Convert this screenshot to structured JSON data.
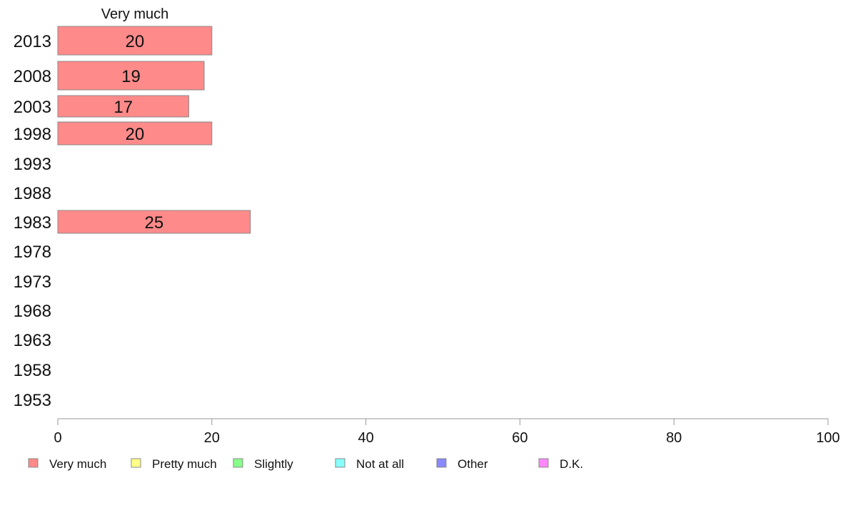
{
  "chart_data": {
    "type": "bar",
    "orientation": "horizontal",
    "stacked": true,
    "column_header": "Very much",
    "categories": [
      "2013",
      "2008",
      "2003",
      "1998",
      "1993",
      "1988",
      "1983",
      "1978",
      "1973",
      "1968",
      "1963",
      "1958",
      "1953"
    ],
    "series": [
      {
        "name": "Very much",
        "color": "#ff8a8a",
        "values": [
          20,
          19,
          17,
          20,
          null,
          null,
          25,
          null,
          null,
          null,
          null,
          null,
          null
        ]
      },
      {
        "name": "Pretty much",
        "color": "#ffff88",
        "values": [
          null,
          null,
          null,
          null,
          null,
          null,
          null,
          null,
          null,
          null,
          null,
          null,
          null
        ]
      },
      {
        "name": "Slightly",
        "color": "#88ff88",
        "values": [
          null,
          null,
          null,
          null,
          null,
          null,
          null,
          null,
          null,
          null,
          null,
          null,
          null
        ]
      },
      {
        "name": "Not at all",
        "color": "#88ffff",
        "values": [
          null,
          null,
          null,
          null,
          null,
          null,
          null,
          null,
          null,
          null,
          null,
          null,
          null
        ]
      },
      {
        "name": "Other",
        "color": "#8888ff",
        "values": [
          null,
          null,
          null,
          null,
          null,
          null,
          null,
          null,
          null,
          null,
          null,
          null,
          null
        ]
      },
      {
        "name": "D.K.",
        "color": "#ff88ff",
        "values": [
          null,
          null,
          null,
          null,
          null,
          null,
          null,
          null,
          null,
          null,
          null,
          null,
          null
        ]
      }
    ],
    "xlim": [
      0,
      100
    ],
    "xticks": [
      0,
      20,
      40,
      60,
      80,
      100
    ],
    "grid": false,
    "legend_position": "bottom-left",
    "axis_color": "#999999",
    "bar_border_color": "#888888"
  }
}
